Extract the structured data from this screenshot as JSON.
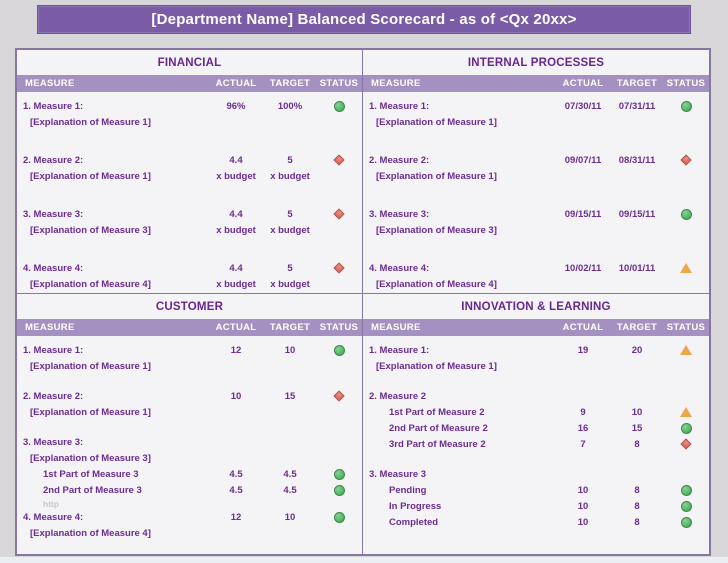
{
  "title": "[Department Name] Balanced Scorecard - as of <Qx 20xx>",
  "colors": {
    "title_bg": "#7A5BA5",
    "column_header_bg": "#A591C1",
    "heading_text": "#67278F",
    "body_text": "#6B2D91",
    "status_green": "#4BAE5C",
    "status_red": "#D96659",
    "status_amber": "#EBA74B",
    "page_bg": "#D8D6D8",
    "panel_bg": "#F4F3F5",
    "border": "#86779F"
  },
  "column_headers": {
    "measure": "MEASURE",
    "actual": "ACTUAL",
    "target": "TARGET",
    "status": "STATUS"
  },
  "quadrants": [
    {
      "id": "financial",
      "title": "FINANCIAL",
      "lines": [
        {
          "label": "1. Measure 1:",
          "actual": "96%",
          "target": "100%",
          "status": "green"
        },
        {
          "label": "[Explanation of Measure 1]",
          "indent": 1
        },
        {
          "spacer": true
        },
        {
          "label": "2. Measure 2:",
          "actual": "4.4",
          "target": "5",
          "status": "red"
        },
        {
          "label": "[Explanation of Measure 1]",
          "actual": "x budget",
          "target": "x budget",
          "indent": 1
        },
        {
          "spacer": true
        },
        {
          "label": "3. Measure 3:",
          "actual": "4.4",
          "target": "5",
          "status": "red"
        },
        {
          "label": "[Explanation of Measure 3]",
          "actual": "x budget",
          "target": "x budget",
          "indent": 1
        },
        {
          "spacer": true
        },
        {
          "label": "4. Measure 4:",
          "actual": "4.4",
          "target": "5",
          "status": "red"
        },
        {
          "label": "[Explanation of Measure 4]",
          "actual": "x budget",
          "target": "x budget",
          "indent": 1
        }
      ]
    },
    {
      "id": "internal-processes",
      "title": "INTERNAL PROCESSES",
      "lines": [
        {
          "label": "1. Measure 1:",
          "actual": "07/30/11",
          "target": "07/31/11",
          "status": "green"
        },
        {
          "label": "[Explanation of Measure 1]",
          "indent": 1
        },
        {
          "spacer": true
        },
        {
          "label": "2. Measure 2:",
          "actual": "09/07/11",
          "target": "08/31/11",
          "status": "red"
        },
        {
          "label": "[Explanation of Measure 1]",
          "indent": 1
        },
        {
          "spacer": true
        },
        {
          "label": "3. Measure 3:",
          "actual": "09/15/11",
          "target": "09/15/11",
          "status": "green"
        },
        {
          "label": "[Explanation of Measure 3]",
          "indent": 1
        },
        {
          "spacer": true
        },
        {
          "label": "4. Measure 4:",
          "actual": "10/02/11",
          "target": "10/01/11",
          "status": "amber"
        },
        {
          "label": "[Explanation of Measure 4]",
          "indent": 1
        }
      ]
    },
    {
      "id": "customer",
      "title": "CUSTOMER",
      "lines": [
        {
          "label": "1. Measure 1:",
          "actual": "12",
          "target": "10",
          "status": "green"
        },
        {
          "label": "[Explanation of Measure 1]",
          "indent": 1
        },
        {
          "spacer": true
        },
        {
          "label": "2. Measure 2:",
          "actual": "10",
          "target": "15",
          "status": "red"
        },
        {
          "label": "[Explanation of Measure 1]",
          "indent": 1
        },
        {
          "spacer": true
        },
        {
          "label": "3. Measure 3:"
        },
        {
          "label": "[Explanation of Measure 3]",
          "indent": 1
        },
        {
          "label": "1st Part of Measure 3",
          "actual": "4.5",
          "target": "4.5",
          "status": "green",
          "indent": 2
        },
        {
          "label": "2nd Part of Measure 3",
          "actual": "4.5",
          "target": "4.5",
          "status": "green",
          "indent": 2
        },
        {
          "label": "http",
          "indent": 2,
          "cls": "watermark"
        },
        {
          "label": "4. Measure 4:",
          "actual": "12",
          "target": "10",
          "status": "green"
        },
        {
          "label": "[Explanation of Measure 4]",
          "indent": 1
        }
      ]
    },
    {
      "id": "innovation-learning",
      "title": "INNOVATION & LEARNING",
      "lines": [
        {
          "label": "1. Measure 1:",
          "actual": "19",
          "target": "20",
          "status": "amber"
        },
        {
          "label": "[Explanation of Measure 1]",
          "indent": 1
        },
        {
          "spacer": true
        },
        {
          "label": "2. Measure 2"
        },
        {
          "label": "1st Part of Measure 2",
          "actual": "9",
          "target": "10",
          "status": "amber",
          "indent": 2
        },
        {
          "label": "2nd Part of Measure 2",
          "actual": "16",
          "target": "15",
          "status": "green",
          "indent": 2
        },
        {
          "label": "3rd Part of Measure 2",
          "actual": "7",
          "target": "8",
          "status": "red",
          "indent": 2
        },
        {
          "spacer": true
        },
        {
          "label": "3. Measure 3"
        },
        {
          "label": "Pending",
          "actual": "10",
          "target": "8",
          "status": "green",
          "indent": 2
        },
        {
          "label": "In Progress",
          "actual": "10",
          "target": "8",
          "status": "green",
          "indent": 2
        },
        {
          "label": "Completed",
          "actual": "10",
          "target": "8",
          "status": "green",
          "indent": 2
        }
      ]
    }
  ]
}
